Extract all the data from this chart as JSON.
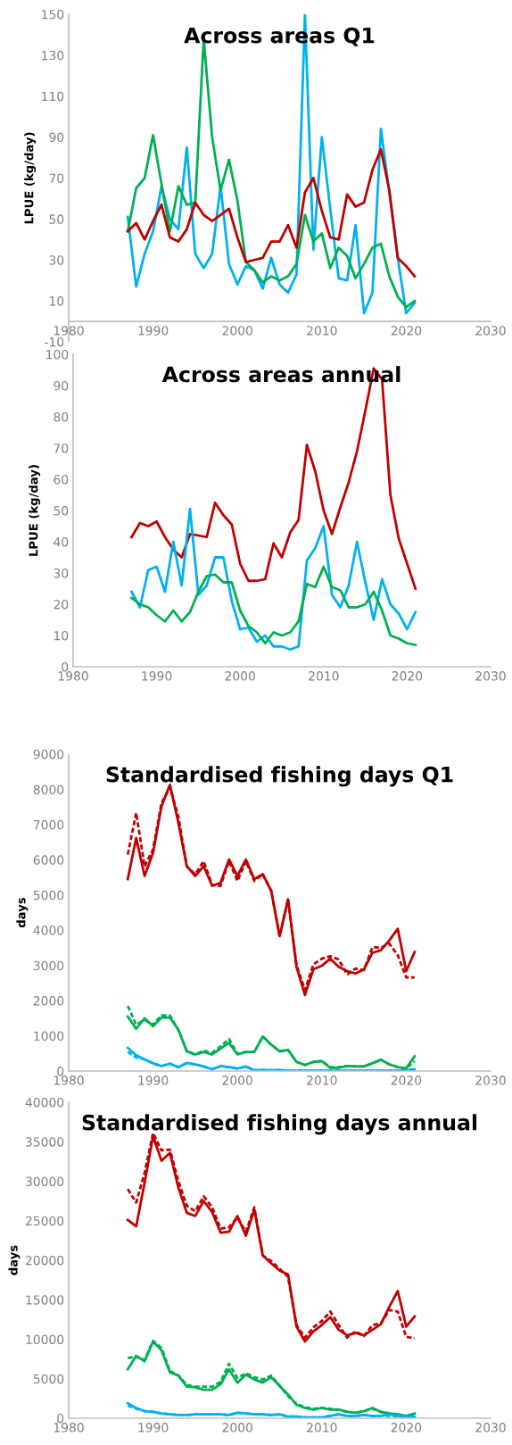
{
  "chart_data": [
    {
      "type": "line",
      "title": "Across areas Q1",
      "ylabel": "LPUE (kg/day)",
      "x": [
        1987,
        1988,
        1989,
        1990,
        1991,
        1992,
        1993,
        1994,
        1995,
        1996,
        1997,
        1998,
        1999,
        2000,
        2001,
        2002,
        2003,
        2004,
        2005,
        2006,
        2007,
        2008,
        2009,
        2010,
        2011,
        2012,
        2013,
        2014,
        2015,
        2016,
        2017,
        2018,
        2019,
        2020,
        2021
      ],
      "xlim": [
        1980,
        2030
      ],
      "xticks": [
        1980,
        1990,
        2000,
        2010,
        2020,
        2030
      ],
      "ylim": [
        -10,
        150
      ],
      "yticks": [
        -10,
        10,
        30,
        50,
        70,
        90,
        110,
        130,
        150
      ],
      "grid": false,
      "legend": false,
      "series": [
        {
          "color": "#00b0f0",
          "line_style": "solid",
          "values": [
            51,
            17,
            33,
            44,
            66,
            50,
            45,
            85,
            33,
            26,
            33,
            66,
            28,
            18,
            27,
            25,
            16,
            31,
            18,
            14,
            23,
            150,
            35,
            90,
            55,
            21,
            20,
            47,
            4,
            14,
            94,
            63,
            31,
            4,
            9
          ]
        },
        {
          "color": "#00b050",
          "line_style": "solid",
          "values": [
            44,
            65,
            70,
            91,
            67,
            44,
            66,
            57,
            58,
            138,
            90,
            64,
            79,
            59,
            29,
            25,
            19,
            22,
            20,
            22,
            28,
            52,
            39,
            43,
            26,
            36,
            32,
            21,
            28,
            36,
            38,
            22,
            12,
            7,
            10
          ]
        },
        {
          "color": "#c00000",
          "line_style": "solid",
          "values": [
            44,
            48,
            40,
            49,
            57,
            41,
            39,
            45,
            58,
            52,
            49,
            52,
            55,
            41,
            29,
            30,
            31,
            39,
            39,
            47,
            36,
            63,
            70,
            54,
            41,
            40,
            62,
            56,
            58,
            74,
            84,
            64,
            31,
            27,
            22
          ]
        }
      ]
    },
    {
      "type": "line",
      "title": "Across areas annual",
      "ylabel": "LPUE (kg/day)",
      "x": [
        1987,
        1988,
        1989,
        1990,
        1991,
        1992,
        1993,
        1994,
        1995,
        1996,
        1997,
        1998,
        1999,
        2000,
        2001,
        2002,
        2003,
        2004,
        2005,
        2006,
        2007,
        2008,
        2009,
        2010,
        2011,
        2012,
        2013,
        2014,
        2015,
        2016,
        2017,
        2018,
        2019,
        2020,
        2021
      ],
      "xlim": [
        1980,
        2030
      ],
      "xticks": [
        1980,
        1990,
        2000,
        2010,
        2020,
        2030
      ],
      "ylim": [
        0,
        100
      ],
      "yticks": [
        0,
        10,
        20,
        30,
        40,
        50,
        60,
        70,
        80,
        90,
        100
      ],
      "grid": false,
      "legend": false,
      "series": [
        {
          "color": "#c00000",
          "line_style": "solid",
          "values": [
            41.5,
            46,
            45,
            46.5,
            41.5,
            37.5,
            35,
            42.5,
            42,
            41.5,
            52.5,
            48.5,
            45.5,
            33,
            27.5,
            27.5,
            28,
            39.5,
            35,
            43,
            47,
            71,
            62.5,
            50,
            42.5,
            51,
            59,
            69,
            82,
            95.5,
            92,
            55,
            41,
            33,
            25
          ]
        },
        {
          "color": "#00b0f0",
          "line_style": "solid",
          "values": [
            24,
            19,
            31,
            32,
            24,
            40,
            26,
            50.5,
            23,
            26,
            35,
            35,
            21,
            12,
            12.5,
            8,
            10,
            6.5,
            6.5,
            5.5,
            6.5,
            34,
            38,
            45,
            23,
            19,
            26,
            40,
            27,
            15,
            28,
            20,
            17,
            12,
            17.5
          ]
        },
        {
          "color": "#00b050",
          "line_style": "solid",
          "values": [
            22,
            20,
            19,
            16.5,
            14.5,
            18,
            14.5,
            17.5,
            24,
            29,
            29.5,
            27,
            27,
            18,
            13,
            11,
            7.5,
            11,
            10,
            11,
            14.5,
            26.5,
            25.5,
            32,
            25.5,
            24.5,
            19,
            19,
            20,
            24,
            18,
            10,
            9,
            7.5,
            7
          ]
        }
      ]
    },
    {
      "type": "line",
      "title": "Standardised fishing days Q1",
      "ylabel": "days",
      "x": [
        1987,
        1988,
        1989,
        1990,
        1991,
        1992,
        1993,
        1994,
        1995,
        1996,
        1997,
        1998,
        1999,
        2000,
        2001,
        2002,
        2003,
        2004,
        2005,
        2006,
        2007,
        2008,
        2009,
        2010,
        2011,
        2012,
        2013,
        2014,
        2015,
        2016,
        2017,
        2018,
        2019,
        2020,
        2021
      ],
      "xlim": [
        1980,
        2030
      ],
      "xticks": [
        1980,
        1990,
        2000,
        2010,
        2020,
        2030
      ],
      "ylim": [
        0,
        9000
      ],
      "yticks": [
        0,
        1000,
        2000,
        3000,
        4000,
        5000,
        6000,
        7000,
        8000,
        9000
      ],
      "grid": false,
      "legend": false,
      "series": [
        {
          "color": "#c00000",
          "line_style": "dashed",
          "values": [
            6150,
            7330,
            5810,
            6300,
            7610,
            8060,
            7230,
            5810,
            5590,
            5960,
            5280,
            5260,
            5960,
            5400,
            5960,
            5400,
            5590,
            5120,
            3830,
            4880,
            3010,
            2300,
            3030,
            3190,
            3260,
            3170,
            2740,
            2910,
            2870,
            3520,
            3500,
            3620,
            3290,
            2660,
            2660
          ]
        },
        {
          "color": "#c00000",
          "line_style": "solid",
          "values": [
            5450,
            6620,
            5540,
            6200,
            7520,
            8130,
            7050,
            5820,
            5540,
            5820,
            5260,
            5350,
            6010,
            5540,
            6010,
            5450,
            5590,
            5120,
            3830,
            4880,
            2960,
            2160,
            2890,
            2990,
            3190,
            2960,
            2840,
            2770,
            2890,
            3360,
            3430,
            3710,
            4040,
            2840,
            3380
          ]
        },
        {
          "color": "#00b050",
          "line_style": "dashed",
          "values": [
            1850,
            1320,
            1450,
            1320,
            1580,
            1580,
            1170,
            560,
            470,
            580,
            520,
            700,
            910,
            490,
            540,
            540,
            980,
            750,
            560,
            600,
            260,
            170,
            260,
            280,
            110,
            110,
            140,
            130,
            130,
            220,
            320,
            190,
            110,
            80,
            280
          ]
        },
        {
          "color": "#00b050",
          "line_style": "solid",
          "values": [
            1550,
            1200,
            1500,
            1270,
            1520,
            1520,
            1170,
            560,
            470,
            540,
            470,
            640,
            800,
            470,
            540,
            540,
            980,
            750,
            560,
            600,
            260,
            170,
            260,
            280,
            90,
            90,
            140,
            130,
            130,
            220,
            320,
            190,
            110,
            80,
            420
          ]
        },
        {
          "color": "#00b0f0",
          "line_style": "dashed",
          "values": [
            550,
            380,
            330,
            220,
            140,
            210,
            110,
            230,
            190,
            130,
            50,
            140,
            110,
            70,
            130,
            20,
            30,
            20,
            30,
            10,
            10,
            10,
            10,
            10,
            10,
            10,
            10,
            10,
            10,
            10,
            10,
            10,
            10,
            20,
            50
          ]
        },
        {
          "color": "#00b0f0",
          "line_style": "solid",
          "values": [
            660,
            450,
            330,
            220,
            140,
            210,
            110,
            230,
            190,
            130,
            50,
            140,
            110,
            70,
            130,
            20,
            30,
            20,
            30,
            10,
            10,
            10,
            10,
            10,
            10,
            10,
            10,
            10,
            10,
            10,
            10,
            10,
            10,
            20,
            50
          ]
        }
      ]
    },
    {
      "type": "line",
      "title": "Standardised fishing days annual",
      "ylabel": "days",
      "x": [
        1987,
        1988,
        1989,
        1990,
        1991,
        1992,
        1993,
        1994,
        1995,
        1996,
        1997,
        1998,
        1999,
        2000,
        2001,
        2002,
        2003,
        2004,
        2005,
        2006,
        2007,
        2008,
        2009,
        2010,
        2011,
        2012,
        2013,
        2014,
        2015,
        2016,
        2017,
        2018,
        2019,
        2020,
        2021
      ],
      "xlim": [
        1980,
        2030
      ],
      "xticks": [
        1980,
        1990,
        2000,
        2010,
        2020,
        2030
      ],
      "ylim": [
        0,
        40000
      ],
      "yticks": [
        0,
        5000,
        10000,
        15000,
        20000,
        25000,
        30000,
        35000,
        40000
      ],
      "grid": false,
      "legend": false,
      "series": [
        {
          "color": "#c00000",
          "line_style": "dashed",
          "values": [
            29000,
            27300,
            31100,
            36100,
            33900,
            34000,
            30000,
            26900,
            26200,
            28100,
            26700,
            24000,
            24200,
            25400,
            23600,
            26700,
            20600,
            19900,
            18900,
            17900,
            11800,
            10200,
            11500,
            12300,
            13500,
            11800,
            10200,
            11000,
            10400,
            11800,
            12000,
            13700,
            13500,
            10300,
            10100
          ]
        },
        {
          "color": "#c00000",
          "line_style": "solid",
          "values": [
            25100,
            24300,
            29800,
            35700,
            32600,
            33600,
            29200,
            26000,
            25600,
            27500,
            26100,
            23500,
            23600,
            25600,
            23100,
            26400,
            20600,
            19600,
            18700,
            18200,
            11600,
            9700,
            11000,
            11800,
            12800,
            11200,
            10500,
            10800,
            10500,
            11200,
            11900,
            14100,
            16100,
            11600,
            12900
          ]
        },
        {
          "color": "#00b050",
          "line_style": "dashed",
          "values": [
            7600,
            7800,
            7400,
            9800,
            8900,
            6000,
            5400,
            4200,
            4000,
            4000,
            4000,
            4600,
            6900,
            5100,
            5700,
            5200,
            4900,
            5400,
            4100,
            2800,
            1800,
            1400,
            1200,
            1300,
            1200,
            1100,
            800,
            700,
            900,
            1200,
            800,
            600,
            500,
            100,
            300
          ]
        },
        {
          "color": "#00b050",
          "line_style": "solid",
          "values": [
            6200,
            7900,
            7200,
            9700,
            8600,
            5800,
            5400,
            4000,
            3900,
            3600,
            3600,
            4300,
            6200,
            4500,
            5500,
            4900,
            4500,
            5200,
            4100,
            3000,
            1700,
            1300,
            1100,
            1300,
            1100,
            1100,
            800,
            700,
            900,
            1300,
            800,
            600,
            500,
            300,
            600
          ]
        },
        {
          "color": "#00b0f0",
          "line_style": "dashed",
          "values": [
            1600,
            1200,
            900,
            800,
            600,
            500,
            400,
            400,
            500,
            500,
            500,
            500,
            400,
            700,
            600,
            500,
            500,
            400,
            500,
            200,
            200,
            100,
            100,
            100,
            300,
            500,
            300,
            300,
            400,
            300,
            300,
            300,
            200,
            100,
            100
          ]
        },
        {
          "color": "#00b0f0",
          "line_style": "solid",
          "values": [
            1900,
            1300,
            900,
            800,
            600,
            500,
            400,
            400,
            500,
            500,
            500,
            500,
            400,
            700,
            600,
            500,
            500,
            400,
            500,
            200,
            200,
            100,
            100,
            100,
            300,
            500,
            300,
            300,
            400,
            300,
            300,
            500,
            300,
            200,
            200
          ]
        }
      ]
    }
  ]
}
